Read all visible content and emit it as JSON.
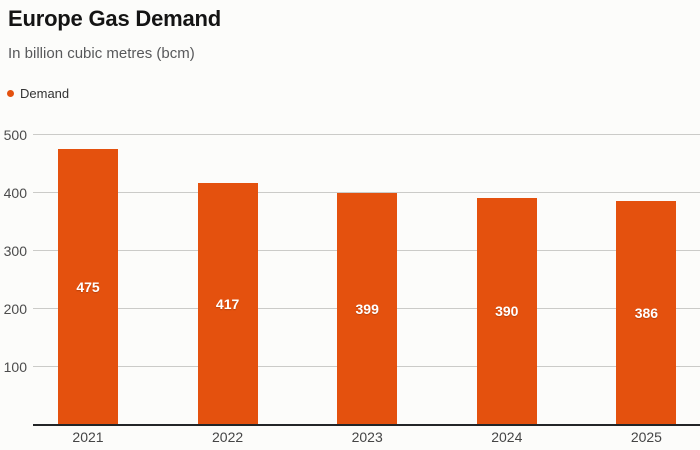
{
  "chart_data": {
    "type": "bar",
    "title": "Europe Gas Demand",
    "subtitle": "In billion cubic metres (bcm)",
    "categories": [
      "2021",
      "2022",
      "2023",
      "2024",
      "2025"
    ],
    "series": [
      {
        "name": "Demand",
        "color": "#e4510e",
        "values": [
          475,
          417,
          399,
          390,
          386
        ]
      }
    ],
    "ylim": [
      0,
      500
    ],
    "yticks": [
      100,
      200,
      300,
      400,
      500
    ],
    "grid": true,
    "legend_position": "top-left",
    "value_labels_shown": true,
    "colors": {
      "bar": "#e4510e",
      "grid": "#cbcbc8",
      "axis": "#232527",
      "value_label": "#ffffff"
    }
  }
}
